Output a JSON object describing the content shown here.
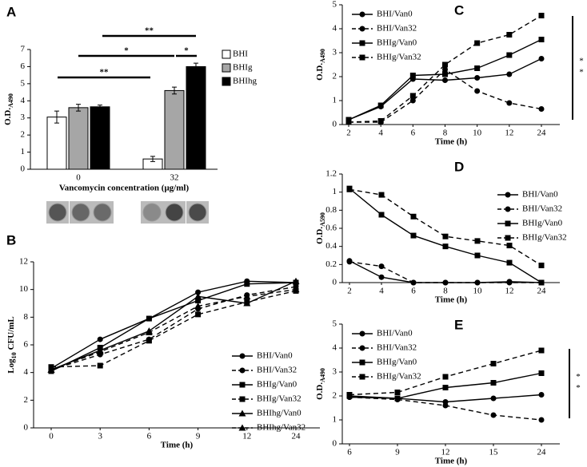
{
  "chart_data": [
    {
      "panel": "A",
      "type": "bar",
      "categories": [
        "0",
        "32"
      ],
      "xlabel": "Vancomycin concentration (μg/ml)",
      "ylabel": {
        "text": "O.D.",
        "sub": "A490"
      },
      "ylim": [
        0,
        7
      ],
      "yticks": [
        0,
        1,
        2,
        3,
        4,
        5,
        6,
        7
      ],
      "legend": "outside right",
      "series": [
        {
          "name": "BHI",
          "color": "#ffffff",
          "values": [
            3.05,
            0.6
          ],
          "errors": [
            0.35,
            0.15
          ]
        },
        {
          "name": "BHIg",
          "color": "#a6a6a6",
          "values": [
            3.6,
            4.6
          ],
          "errors": [
            0.2,
            0.2
          ]
        },
        {
          "name": "BHIhg",
          "color": "#000000",
          "values": [
            3.65,
            6.0
          ],
          "errors": [
            0.1,
            0.2
          ]
        }
      ],
      "annotations": [
        "**",
        "*",
        "*",
        "**"
      ]
    },
    {
      "panel": "B",
      "type": "line",
      "categories": [
        "0",
        "3",
        "6",
        "9",
        "12",
        "24"
      ],
      "xlabel": "Time (h)",
      "ylabel": {
        "text": "Log",
        "sub": "10",
        "after": "CFU/mL"
      },
      "ylim": [
        0,
        12
      ],
      "yticks": [
        0,
        2,
        4,
        6,
        8,
        10,
        12
      ],
      "legend": "lower right",
      "series": [
        {
          "name": "BHI/Van0",
          "color": "#000000",
          "marker": "circle",
          "dashed": false,
          "values": [
            4.3,
            6.4,
            7.9,
            9.8,
            10.6,
            10.5
          ]
        },
        {
          "name": "BHI/Van32",
          "color": "#000000",
          "marker": "circle",
          "dashed": true,
          "values": [
            4.2,
            5.3,
            6.4,
            8.6,
            9.6,
            10.2
          ]
        },
        {
          "name": "BHIg/Van0",
          "color": "#000000",
          "marker": "square",
          "dashed": false,
          "values": [
            4.1,
            5.8,
            7.9,
            9.2,
            10.4,
            10.5
          ]
        },
        {
          "name": "BHIg/Van32",
          "color": "#000000",
          "marker": "square",
          "dashed": true,
          "values": [
            4.4,
            4.5,
            6.3,
            8.2,
            9.1,
            9.9
          ]
        },
        {
          "name": "BHIhg/Van0",
          "color": "#000000",
          "marker": "triangle",
          "dashed": false,
          "values": [
            4.2,
            5.6,
            7.0,
            9.5,
            9.0,
            10.6
          ]
        },
        {
          "name": "BHIhg/Van32",
          "color": "#000000",
          "marker": "triangle",
          "dashed": true,
          "values": [
            4.2,
            5.5,
            6.9,
            8.8,
            9.5,
            10.0
          ]
        }
      ]
    },
    {
      "panel": "C",
      "type": "line",
      "categories": [
        "2",
        "4",
        "6",
        "8",
        "10",
        "12",
        "24"
      ],
      "xlabel": "Time (h)",
      "ylabel": {
        "text": "O.D.",
        "sub": "A490"
      },
      "ylim": [
        0,
        5
      ],
      "yticks": [
        0,
        1,
        2,
        3,
        4,
        5
      ],
      "legend": "upper left",
      "series": [
        {
          "name": "BHI/Van0",
          "color": "#000000",
          "marker": "circle",
          "dashed": false,
          "values": [
            0.2,
            0.75,
            1.9,
            1.85,
            1.95,
            2.1,
            2.75
          ]
        },
        {
          "name": "BHI/Van32",
          "color": "#000000",
          "marker": "circle",
          "dashed": true,
          "values": [
            0.1,
            0.1,
            1.0,
            2.3,
            1.4,
            0.9,
            0.65
          ]
        },
        {
          "name": "BHIg/Van0",
          "color": "#000000",
          "marker": "square",
          "dashed": false,
          "values": [
            0.2,
            0.8,
            2.05,
            2.1,
            2.35,
            2.9,
            3.55
          ]
        },
        {
          "name": "BHIg/Van32",
          "color": "#000000",
          "marker": "square",
          "dashed": true,
          "values": [
            0.1,
            0.15,
            1.2,
            2.5,
            3.4,
            3.75,
            4.55
          ]
        }
      ],
      "annotations": [
        "*",
        "*"
      ]
    },
    {
      "panel": "D",
      "type": "line",
      "categories": [
        "2",
        "4",
        "6",
        "8",
        "10",
        "12",
        "24"
      ],
      "xlabel": "Time (h)",
      "ylabel": {
        "text": "O.D.",
        "sub": "A590"
      },
      "ylim": [
        0,
        1.2
      ],
      "yticks": [
        0,
        0.2,
        0.4,
        0.6,
        0.8,
        1,
        1.2
      ],
      "legend": "upper right",
      "series": [
        {
          "name": "BHI/Van0",
          "color": "#000000",
          "marker": "circle",
          "dashed": false,
          "values": [
            0.24,
            0.06,
            0.0,
            0.0,
            0.0,
            0.01,
            0.0
          ]
        },
        {
          "name": "BHI/Van32",
          "color": "#000000",
          "marker": "circle",
          "dashed": true,
          "values": [
            0.23,
            0.18,
            0.0,
            0.0,
            0.0,
            0.0,
            0.0
          ]
        },
        {
          "name": "BHIg/Van0",
          "color": "#000000",
          "marker": "square",
          "dashed": false,
          "values": [
            1.04,
            0.75,
            0.52,
            0.4,
            0.3,
            0.22,
            0.0
          ]
        },
        {
          "name": "BHIg/Van32",
          "color": "#000000",
          "marker": "square",
          "dashed": true,
          "values": [
            1.03,
            0.97,
            0.73,
            0.51,
            0.46,
            0.41,
            0.19
          ]
        }
      ]
    },
    {
      "panel": "E",
      "type": "line",
      "categories": [
        "6",
        "9",
        "12",
        "15",
        "24"
      ],
      "xlabel": "Time (h)",
      "ylabel": {
        "text": "O.D.",
        "sub": "A490"
      },
      "ylim": [
        0,
        5
      ],
      "yticks": [
        0,
        1,
        2,
        3,
        4,
        5
      ],
      "legend": "upper left",
      "series": [
        {
          "name": "BHI/Van0",
          "color": "#000000",
          "marker": "circle",
          "dashed": false,
          "values": [
            1.95,
            1.9,
            1.75,
            1.9,
            2.05
          ]
        },
        {
          "name": "BHI/Van32",
          "color": "#000000",
          "marker": "circle",
          "dashed": true,
          "values": [
            1.95,
            1.85,
            1.6,
            1.2,
            1.0
          ]
        },
        {
          "name": "BHIg/Van0",
          "color": "#000000",
          "marker": "square",
          "dashed": false,
          "values": [
            2.0,
            1.9,
            2.35,
            2.55,
            2.95
          ]
        },
        {
          "name": "BHIg/Van32",
          "color": "#000000",
          "marker": "square",
          "dashed": true,
          "values": [
            2.05,
            2.15,
            2.8,
            3.35,
            3.9
          ]
        }
      ],
      "annotations": [
        "*",
        "*"
      ]
    }
  ]
}
